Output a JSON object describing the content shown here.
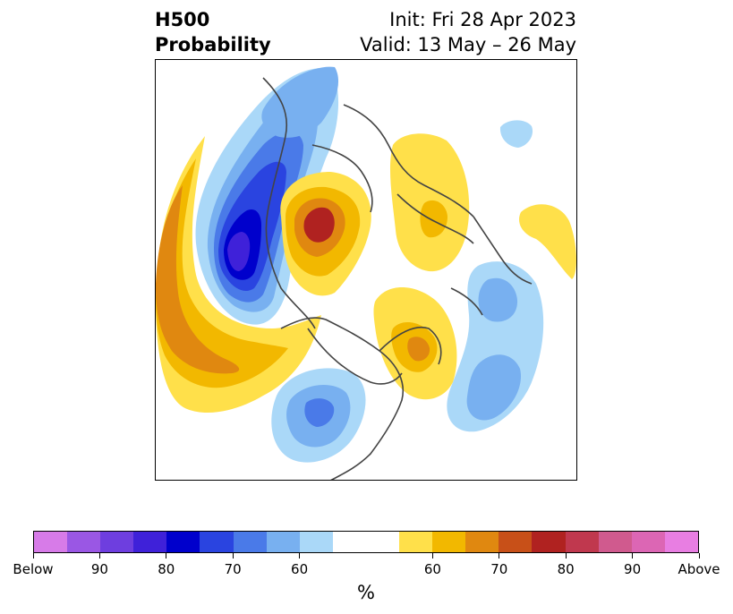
{
  "header": {
    "title_line1": "H500",
    "title_line2": "Probability",
    "init": "Init: Fri 28 Apr 2023",
    "valid": "Valid: 13 May – 26 May"
  },
  "colorbar": {
    "colors": [
      "#d77be8",
      "#9a57e4",
      "#6e3edf",
      "#3f21d9",
      "#0000cc",
      "#2a44e0",
      "#4a7ae8",
      "#78b0f0",
      "#aad8f8",
      "#ffffff",
      "#ffe04a",
      "#f2b800",
      "#e08810",
      "#c85018",
      "#b02220",
      "#c0384e",
      "#d05a8e",
      "#dc66b4",
      "#e87ee2"
    ],
    "tick_labels": [
      "Below",
      "90",
      "80",
      "70",
      "60",
      "60",
      "70",
      "80",
      "90",
      "Above"
    ],
    "unit": "%"
  },
  "palette": {
    "blue_light": "#aad8f8",
    "blue_2": "#78b0f0",
    "blue_3": "#4a7ae8",
    "blue_4": "#2a44e0",
    "blue_5": "#0000cc",
    "blue_6": "#3f21d9",
    "yellow": "#ffe04a",
    "gold": "#f2b800",
    "orange": "#e08810",
    "dark_orange": "#c85018",
    "red": "#b02220",
    "coast": "#444444"
  }
}
